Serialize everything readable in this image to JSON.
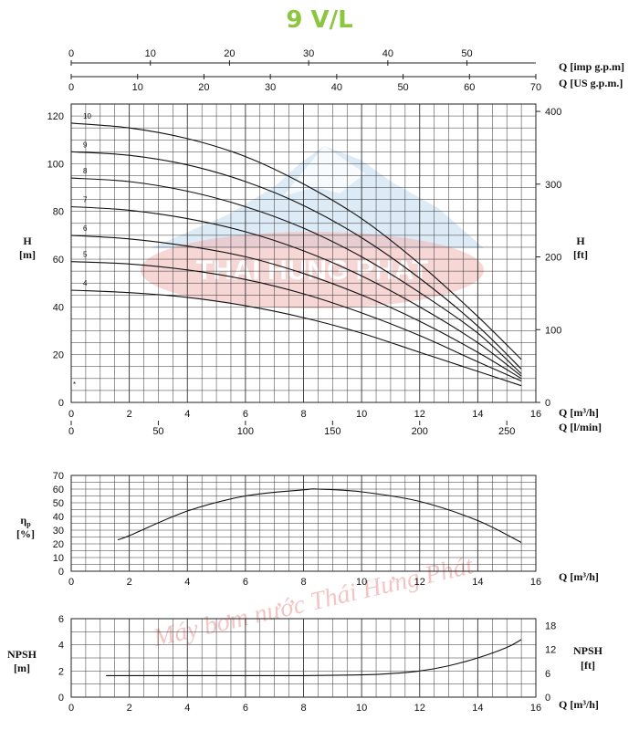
{
  "page": {
    "title": "9 V/L"
  },
  "watermarks": {
    "logo_text": "THAI HUNG PHAT",
    "diagonal_text": "Máy bơm nước Thái Hưng Phát"
  },
  "colors": {
    "title": "#8cc63f",
    "grid": "#333333",
    "curve": "#111111",
    "watermark_red": "#e05a5a",
    "watermark_blue": "#5aa0d8"
  },
  "chart_data": [
    {
      "type": "line",
      "name": "head-curves",
      "title": "9 V/L",
      "xlabel": "Q [m³/h]",
      "xlabel_secondary": "Q [l/min]",
      "xlabel_top_1": "Q [imp g.p.m]",
      "xlabel_top_2": "Q [US g.p.m.]",
      "ylabel_left": "H [m]",
      "ylabel_left_1": "H",
      "ylabel_left_2": "[m]",
      "ylabel_right_1": "H",
      "ylabel_right_2": "[ft]",
      "xlim": [
        0,
        16
      ],
      "ylim": [
        0,
        125
      ],
      "grid": true,
      "x_ticks_m3h": [
        "0",
        "2",
        "4",
        "6",
        "8",
        "10",
        "12",
        "14",
        "16"
      ],
      "x_ticks_lmin": [
        "0",
        "50",
        "100",
        "150",
        "200",
        "250"
      ],
      "x_ticks_imp": [
        "0",
        "10",
        "20",
        "30",
        "40",
        "50"
      ],
      "x_ticks_us": [
        "0",
        "10",
        "20",
        "30",
        "40",
        "50",
        "60",
        "70"
      ],
      "y_ticks_m": [
        "0",
        "20",
        "40",
        "60",
        "80",
        "100",
        "120"
      ],
      "y_ticks_ft": [
        "0",
        "100",
        "200",
        "300",
        "400"
      ],
      "low_marker": "*",
      "x": [
        0,
        2,
        4,
        6,
        8,
        10,
        12,
        14,
        15.5
      ],
      "series": [
        {
          "name": "4",
          "values": [
            47,
            46,
            44,
            40.5,
            35.5,
            29,
            21,
            13,
            7
          ]
        },
        {
          "name": "5",
          "values": [
            59,
            58,
            55.5,
            51.5,
            45.5,
            37.5,
            28,
            17,
            9
          ]
        },
        {
          "name": "6",
          "values": [
            70,
            68.5,
            65.5,
            61,
            54,
            45,
            34,
            21,
            10
          ]
        },
        {
          "name": "7",
          "values": [
            82,
            80.5,
            77,
            71.5,
            63.5,
            53,
            40,
            25,
            11
          ]
        },
        {
          "name": "8",
          "values": [
            94,
            92.5,
            88.5,
            82,
            73,
            61,
            46,
            29,
            12
          ]
        },
        {
          "name": "9",
          "values": [
            105,
            103.5,
            99.5,
            92.5,
            82.5,
            69,
            52,
            32,
            14
          ]
        },
        {
          "name": "10",
          "values": [
            117,
            115,
            110.5,
            103,
            91.5,
            77,
            58,
            36,
            18
          ]
        }
      ]
    },
    {
      "type": "line",
      "name": "efficiency",
      "title": "",
      "xlabel": "Q [m³/h]",
      "ylabel": "ηp [%]",
      "ylabel_sym": "η",
      "ylabel_sub": "p",
      "ylabel_unit": "[%]",
      "xlim": [
        0,
        16
      ],
      "ylim": [
        0,
        70
      ],
      "grid": true,
      "x_ticks": [
        "0",
        "2",
        "4",
        "6",
        "8",
        "10",
        "12",
        "14",
        "16"
      ],
      "y_ticks": [
        "0",
        "10",
        "20",
        "30",
        "40",
        "50",
        "60",
        "70"
      ],
      "series": [
        {
          "name": "ηp",
          "x": [
            1.6,
            2,
            4,
            6,
            8,
            8.5,
            10,
            12,
            14,
            15.5
          ],
          "values": [
            23,
            26,
            44,
            55,
            59.5,
            60,
            58,
            51,
            37,
            21
          ]
        }
      ]
    },
    {
      "type": "line",
      "name": "npsh",
      "title": "",
      "xlabel": "Q [m³/h]",
      "ylabel_left_1": "NPSH",
      "ylabel_left_2": "[m]",
      "ylabel_right_1": "NPSH",
      "ylabel_right_2": "[ft]",
      "xlim": [
        0,
        16
      ],
      "ylim": [
        0,
        6
      ],
      "grid": true,
      "x_ticks": [
        "0",
        "2",
        "4",
        "6",
        "8",
        "10",
        "12",
        "14",
        "16"
      ],
      "y_ticks_m": [
        "0",
        "2",
        "4",
        "6"
      ],
      "y_ticks_ft": [
        "0",
        "6",
        "12",
        "18"
      ],
      "series": [
        {
          "name": "NPSH",
          "x": [
            1.2,
            4,
            8,
            10,
            11,
            12,
            13,
            14,
            15,
            15.5
          ],
          "values": [
            1.65,
            1.65,
            1.65,
            1.7,
            1.8,
            2.0,
            2.4,
            3.0,
            3.8,
            4.4
          ]
        }
      ]
    }
  ]
}
